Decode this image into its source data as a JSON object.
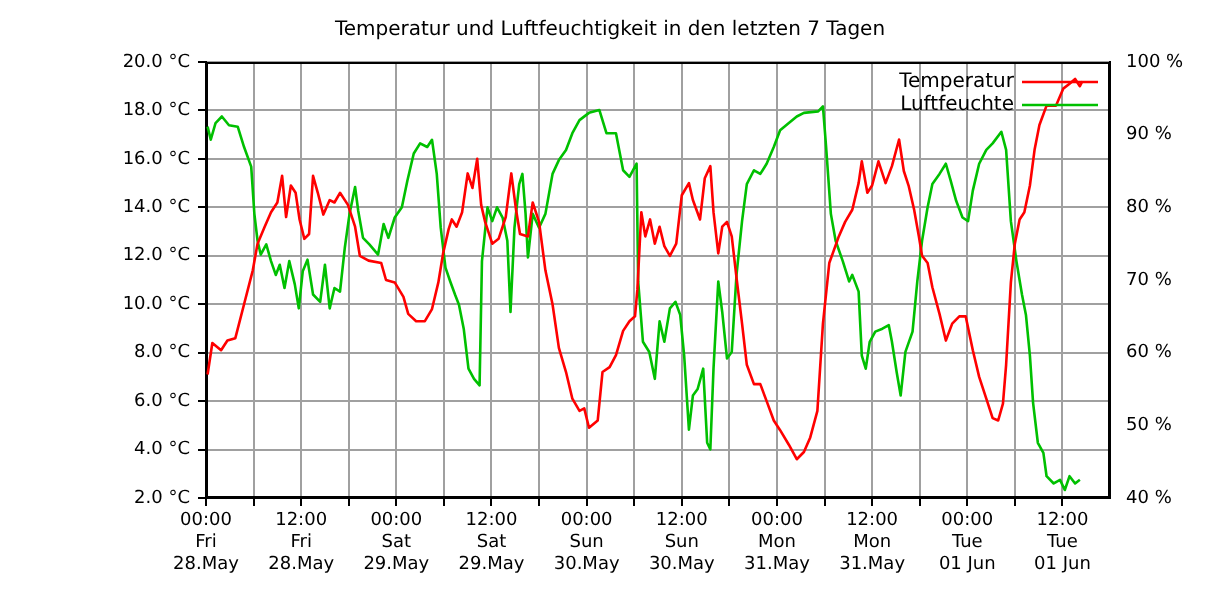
{
  "chart_data": {
    "type": "line",
    "title": "Temperatur und Luftfeuchtigkeit in den letzten 7 Tagen",
    "legend": "top right",
    "grid": true,
    "marker": "none",
    "line_style": "solid",
    "xlim": [
      "--05-28T00:00",
      "--06-01T18:00"
    ],
    "xticks": [
      {
        "value": "--05-28T00:00",
        "label": "00:00\nFri\n28.May"
      },
      {
        "value": "--05-28T06:00",
        "label": null
      },
      {
        "value": "--05-28T12:00",
        "label": "12:00\nFri\n28.May"
      },
      {
        "value": "--05-28T18:00",
        "label": null
      },
      {
        "value": "--05-29T00:00",
        "label": "00:00\nSat\n29.May"
      },
      {
        "value": "--05-29T06:00",
        "label": null
      },
      {
        "value": "--05-29T12:00",
        "label": "12:00\nSat\n29.May"
      },
      {
        "value": "--05-29T18:00",
        "label": null
      },
      {
        "value": "--05-30T00:00",
        "label": "00:00\nSun\n30.May"
      },
      {
        "value": "--05-30T06:00",
        "label": null
      },
      {
        "value": "--05-30T12:00",
        "label": "12:00\nSun\n30.May"
      },
      {
        "value": "--05-30T18:00",
        "label": null
      },
      {
        "value": "--05-31T00:00",
        "label": "00:00\nMon\n31.May"
      },
      {
        "value": "--05-31T06:00",
        "label": null
      },
      {
        "value": "--05-31T12:00",
        "label": "12:00\nMon\n31.May"
      },
      {
        "value": "--05-31T18:00",
        "label": null
      },
      {
        "value": "--06-01T00:00",
        "label": "00:00\nTue\n01 Jun"
      },
      {
        "value": "--06-01T06:00",
        "label": null
      },
      {
        "value": "--06-01T12:00",
        "label": "12:00\nTue\n01 Jun"
      }
    ],
    "ylim": [
      2,
      20
    ],
    "yticks": [
      {
        "value": 2,
        "label": "2.0 °C"
      },
      {
        "value": 4,
        "label": "4.0 °C"
      },
      {
        "value": 6,
        "label": "6.0 °C"
      },
      {
        "value": 8,
        "label": "8.0 °C"
      },
      {
        "value": 10,
        "label": "10.0 °C"
      },
      {
        "value": 12,
        "label": "12.0 °C"
      },
      {
        "value": 14,
        "label": "14.0 °C"
      },
      {
        "value": 16,
        "label": "16.0 °C"
      },
      {
        "value": 18,
        "label": "18.0 °C"
      },
      {
        "value": 20,
        "label": "20.0 °C"
      }
    ],
    "y2lim": [
      40,
      100
    ],
    "y2ticks": [
      {
        "value": 40,
        "label": "40 %"
      },
      {
        "value": 50,
        "label": "50 %"
      },
      {
        "value": 60,
        "label": "60 %"
      },
      {
        "value": 70,
        "label": "70 %"
      },
      {
        "value": 80,
        "label": "80 %"
      },
      {
        "value": 90,
        "label": "90 %"
      },
      {
        "value": 100,
        "label": "100 %"
      }
    ],
    "series": [
      {
        "name": "Temperatur",
        "color": "#ff0000",
        "x": [
          "--05-28T00:12",
          "--05-28T00:48",
          "--05-28T01:54",
          "--05-28T02:42",
          "--05-28T03:42",
          "--05-28T04:48",
          "--05-28T05:54",
          "--05-28T06:30",
          "--05-28T07:24",
          "--05-28T08:12",
          "--05-28T09:00",
          "--05-28T09:36",
          "--05-28T10:06",
          "--05-28T10:42",
          "--05-28T11:18",
          "--05-28T11:48",
          "--05-28T12:24",
          "--05-28T13:00",
          "--05-28T13:30",
          "--05-28T14:06",
          "--05-28T14:48",
          "--05-28T15:36",
          "--05-28T16:12",
          "--05-28T16:54",
          "--05-28T17:54",
          "--05-28T18:48",
          "--05-28T19:24",
          "--05-28T20:30",
          "--05-28T22:06",
          "--05-28T22:42",
          "--05-28T23:48",
          "--05-29T00:54",
          "--05-29T01:30",
          "--05-29T02:30",
          "--05-29T03:36",
          "--05-29T04:30",
          "--05-29T05:18",
          "--05-29T05:54",
          "--05-29T06:36",
          "--05-29T07:00",
          "--05-29T07:36",
          "--05-29T08:18",
          "--05-29T09:00",
          "--05-29T09:36",
          "--05-29T10:12",
          "--05-29T10:42",
          "--05-29T11:12",
          "--05-29T12:06",
          "--05-29T12:54",
          "--05-29T13:48",
          "--05-29T14:30",
          "--05-29T15:06",
          "--05-29T15:36",
          "--05-29T16:36",
          "--05-29T17:12",
          "--05-29T18:00",
          "--05-29T18:48",
          "--05-29T19:42",
          "--05-29T20:30",
          "--05-29T21:24",
          "--05-29T22:12",
          "--05-29T23:06",
          "--05-29T23:42",
          "--05-30T00:18",
          "--05-30T01:24",
          "--05-30T02:00",
          "--05-30T02:54",
          "--05-30T03:42",
          "--05-30T04:36",
          "--05-30T05:24",
          "--05-30T06:06",
          "--05-30T06:24",
          "--05-30T06:54",
          "--05-30T07:24",
          "--05-30T08:00",
          "--05-30T08:36",
          "--05-30T09:12",
          "--05-30T09:48",
          "--05-30T10:30",
          "--05-30T11:18",
          "--05-30T12:00",
          "--05-30T12:54",
          "--05-30T13:24",
          "--05-30T14:18",
          "--05-30T14:54",
          "--05-30T15:36",
          "--05-30T16:00",
          "--05-30T16:36",
          "--05-30T17:06",
          "--05-30T17:42",
          "--05-30T18:18",
          "--05-30T18:54",
          "--05-30T19:36",
          "--05-30T20:12",
          "--05-30T21:06",
          "--05-30T21:54",
          "--05-30T22:42",
          "--05-30T23:36",
          "--05-31T00:24",
          "--05-31T01:30",
          "--05-31T02:30",
          "--05-31T03:24",
          "--05-31T04:12",
          "--05-31T05:06",
          "--05-31T05:48",
          "--05-31T06:36",
          "--05-31T07:48",
          "--05-31T08:36",
          "--05-31T09:30",
          "--05-31T10:18",
          "--05-31T10:42",
          "--05-31T11:24",
          "--05-31T12:00",
          "--05-31T12:48",
          "--05-31T13:42",
          "--05-31T14:30",
          "--05-31T15:24",
          "--05-31T16:00",
          "--05-31T16:36",
          "--05-31T17:18",
          "--05-31T17:54",
          "--05-31T18:18",
          "--05-31T19:00",
          "--05-31T19:36",
          "--05-31T20:30",
          "--05-31T21:18",
          "--05-31T22:06",
          "--05-31T23:00",
          "--05-31T23:48",
          "--06-01T00:42",
          "--06-01T01:30",
          "--06-01T02:24",
          "--06-01T03:12",
          "--06-01T03:54",
          "--06-01T04:30",
          "--06-01T04:54",
          "--06-01T05:30",
          "--06-01T06:00",
          "--06-01T06:36",
          "--06-01T07:12",
          "--06-01T07:54",
          "--06-01T08:30",
          "--06-01T09:06",
          "--06-01T10:00",
          "--06-01T11:12",
          "--06-01T12:06",
          "--06-01T12:54",
          "--06-01T13:36",
          "--06-01T14:12",
          "--06-01T14:30"
        ],
        "values": [
          7.1,
          8.4,
          8.1,
          8.5,
          8.6,
          10.0,
          11.4,
          12.5,
          13.2,
          13.8,
          14.2,
          15.3,
          13.6,
          14.9,
          14.6,
          13.5,
          12.7,
          12.9,
          15.3,
          14.6,
          13.7,
          14.3,
          14.2,
          14.6,
          14.1,
          13.2,
          12.0,
          11.8,
          11.7,
          11.0,
          10.9,
          10.3,
          9.6,
          9.3,
          9.3,
          9.8,
          10.9,
          12.1,
          13.1,
          13.5,
          13.2,
          13.8,
          15.4,
          14.8,
          16.0,
          14.1,
          13.4,
          12.5,
          12.7,
          13.6,
          15.4,
          13.9,
          12.9,
          12.8,
          14.2,
          13.4,
          11.4,
          10.0,
          8.2,
          7.2,
          6.1,
          5.6,
          5.7,
          4.9,
          5.2,
          7.2,
          7.4,
          7.9,
          8.9,
          9.3,
          9.5,
          10.6,
          13.8,
          12.8,
          13.5,
          12.5,
          13.2,
          12.4,
          12.0,
          12.5,
          14.5,
          15.0,
          14.3,
          13.5,
          15.2,
          15.7,
          13.8,
          12.1,
          13.2,
          13.4,
          12.8,
          11.1,
          9.2,
          7.5,
          6.7,
          6.7,
          6.0,
          5.2,
          4.8,
          4.2,
          3.6,
          3.9,
          4.5,
          5.6,
          9.2,
          11.7,
          12.8,
          13.4,
          13.9,
          15.0,
          15.9,
          14.6,
          14.9,
          15.9,
          15.0,
          15.7,
          16.8,
          15.5,
          14.9,
          13.9,
          12.8,
          12.0,
          11.7,
          10.7,
          9.6,
          8.5,
          9.2,
          9.5,
          9.5,
          8.1,
          7.0,
          6.1,
          5.3,
          5.2,
          5.9,
          7.5,
          10.9,
          12.5,
          13.5,
          13.8,
          14.9,
          16.4,
          17.4,
          18.2,
          18.2,
          18.9,
          19.1,
          19.3,
          19.0,
          19.2
        ]
      },
      {
        "name": "Luftfeuchte",
        "color": "#00c000",
        "axis": "y2",
        "x": [
          "--05-28T00:12",
          "--05-28T00:36",
          "--05-28T01:12",
          "--05-28T02:00",
          "--05-28T02:54",
          "--05-28T04:00",
          "--05-28T04:48",
          "--05-28T05:42",
          "--05-28T06:06",
          "--05-28T06:30",
          "--05-28T06:54",
          "--05-28T07:36",
          "--05-28T08:12",
          "--05-28T08:48",
          "--05-28T09:18",
          "--05-28T09:54",
          "--05-28T10:30",
          "--05-28T11:12",
          "--05-28T11:42",
          "--05-28T12:12",
          "--05-28T12:48",
          "--05-28T13:30",
          "--05-28T14:24",
          "--05-28T15:00",
          "--05-28T15:36",
          "--05-28T16:12",
          "--05-28T16:54",
          "--05-28T17:30",
          "--05-28T18:06",
          "--05-28T18:48",
          "--05-28T19:12",
          "--05-28T19:48",
          "--05-28T20:36",
          "--05-28T21:42",
          "--05-28T22:24",
          "--05-28T23:00",
          "--05-28T23:48",
          "--05-29T00:42",
          "--05-29T01:24",
          "--05-29T02:12",
          "--05-29T03:00",
          "--05-29T03:54",
          "--05-29T04:30",
          "--05-29T05:06",
          "--05-29T05:36",
          "--05-29T06:12",
          "--05-29T06:48",
          "--05-29T07:24",
          "--05-29T07:54",
          "--05-29T08:30",
          "--05-29T09:06",
          "--05-29T09:48",
          "--05-29T10:30",
          "--05-29T10:48",
          "--05-29T11:30",
          "--05-29T12:06",
          "--05-29T12:42",
          "--05-29T13:24",
          "--05-29T14:00",
          "--05-29T14:24",
          "--05-29T14:54",
          "--05-29T15:30",
          "--05-29T15:54",
          "--05-29T16:18",
          "--05-29T16:36",
          "--05-29T17:12",
          "--05-29T18:00",
          "--05-29T18:48",
          "--05-29T19:42",
          "--05-29T20:30",
          "--05-29T21:24",
          "--05-29T22:12",
          "--05-29T23:06",
          "--05-30T00:18",
          "--05-30T01:36",
          "--05-30T02:30",
          "--05-30T03:42",
          "--05-30T04:36",
          "--05-30T05:24",
          "--05-30T06:18",
          "--05-30T06:30",
          "--05-30T07:06",
          "--05-30T07:54",
          "--05-30T08:36",
          "--05-30T09:12",
          "--05-30T09:48",
          "--05-30T10:30",
          "--05-30T11:12",
          "--05-30T11:48",
          "--05-30T12:18",
          "--05-30T12:54",
          "--05-30T13:24",
          "--05-30T14:00",
          "--05-30T14:42",
          "--05-30T15:12",
          "--05-30T15:36",
          "--05-30T16:00",
          "--05-30T16:36",
          "--05-30T17:06",
          "--05-30T17:42",
          "--05-30T18:18",
          "--05-30T18:54",
          "--05-30T19:36",
          "--05-30T20:12",
          "--05-30T21:06",
          "--05-30T21:54",
          "--05-30T22:42",
          "--05-30T23:36",
          "--05-31T00:24",
          "--05-31T01:30",
          "--05-31T02:30",
          "--05-31T03:24",
          "--05-31T05:12",
          "--05-31T05:48",
          "--05-31T06:12",
          "--05-31T06:48",
          "--05-31T07:24",
          "--05-31T08:18",
          "--05-31T09:06",
          "--05-31T09:30",
          "--05-31T10:18",
          "--05-31T10:42",
          "--05-31T11:12",
          "--05-31T11:42",
          "--05-31T12:24",
          "--05-31T13:18",
          "--05-31T14:06",
          "--05-31T14:30",
          "--05-31T15:06",
          "--05-31T15:36",
          "--05-31T16:12",
          "--05-31T17:06",
          "--05-31T17:42",
          "--05-31T18:18",
          "--05-31T19:00",
          "--05-31T19:36",
          "--05-31T20:30",
          "--05-31T21:18",
          "--05-31T21:54",
          "--05-31T22:36",
          "--05-31T23:24",
          "--06-01T00:06",
          "--06-01T00:42",
          "--06-01T01:30",
          "--06-01T02:24",
          "--06-01T03:12",
          "--06-01T04:18",
          "--06-01T04:54",
          "--06-01T05:30",
          "--06-01T06:12",
          "--06-01T06:54",
          "--06-01T07:24",
          "--06-01T07:54",
          "--06-01T08:18",
          "--06-01T08:54",
          "--06-01T09:36",
          "--06-01T10:00",
          "--06-01T10:54",
          "--06-01T11:42",
          "--06-01T12:18",
          "--06-01T12:54",
          "--06-01T13:36",
          "--06-01T14:12"
        ],
        "values": [
          91.1,
          89.3,
          91.6,
          92.5,
          91.3,
          91.1,
          88.3,
          85.6,
          79.1,
          75.4,
          73.5,
          74.9,
          72.6,
          70.7,
          72.1,
          68.9,
          72.6,
          69.4,
          66.1,
          71.2,
          72.8,
          68.0,
          67.0,
          72.1,
          66.1,
          68.9,
          68.4,
          74.4,
          79.1,
          82.8,
          79.5,
          75.8,
          74.9,
          73.5,
          77.7,
          75.8,
          78.6,
          80.0,
          83.7,
          87.4,
          88.8,
          88.3,
          89.3,
          84.6,
          77.2,
          71.7,
          69.8,
          68.0,
          66.6,
          63.3,
          57.8,
          56.4,
          55.5,
          72.6,
          80.0,
          78.1,
          80.0,
          78.6,
          75.4,
          65.6,
          77.2,
          83.2,
          84.6,
          79.1,
          73.1,
          79.1,
          77.2,
          79.1,
          84.6,
          86.5,
          87.9,
          90.2,
          92.0,
          93.0,
          93.4,
          90.2,
          90.2,
          85.1,
          84.2,
          86.0,
          69.8,
          61.5,
          60.1,
          56.4,
          64.3,
          61.5,
          66.1,
          67.0,
          65.2,
          59.6,
          49.4,
          54.1,
          55.0,
          57.8,
          47.6,
          46.7,
          57.8,
          69.8,
          65.6,
          59.2,
          60.1,
          70.7,
          78.1,
          83.2,
          85.1,
          84.6,
          86.0,
          88.3,
          90.6,
          91.6,
          92.5,
          93.0,
          93.2,
          93.9,
          88.3,
          79.1,
          75.4,
          72.6,
          69.8,
          70.7,
          68.4,
          59.6,
          57.8,
          61.5,
          62.9,
          63.3,
          63.8,
          61.5,
          57.3,
          54.1,
          60.1,
          62.9,
          69.8,
          75.4,
          80.0,
          83.2,
          84.6,
          86.0,
          83.7,
          80.9,
          78.6,
          78.1,
          82.3,
          86.0,
          87.9,
          88.8,
          90.4,
          87.9,
          78.1,
          72.6,
          68.0,
          65.2,
          59.6,
          53.1,
          47.6,
          46.2,
          43.0,
          42.0,
          42.5,
          41.1,
          43.0,
          42.0,
          42.5
        ]
      }
    ]
  }
}
